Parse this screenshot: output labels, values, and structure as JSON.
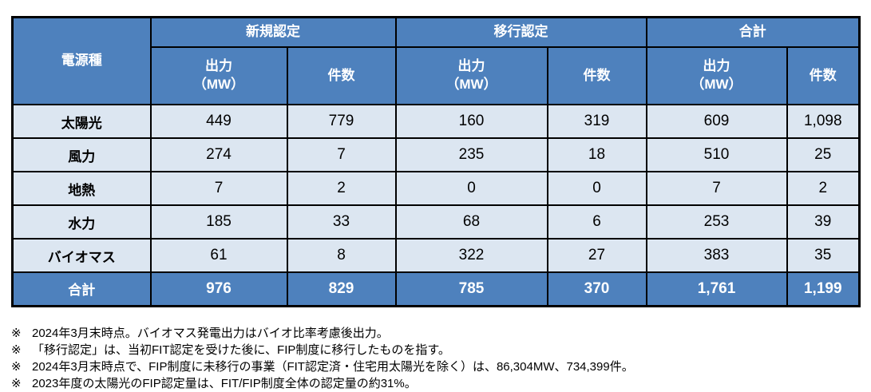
{
  "chart_data": {
    "type": "table",
    "corner_header": "電源種",
    "column_groups": [
      "新規認定",
      "移行認定",
      "合計"
    ],
    "sub_columns": [
      "出力\n（MW）",
      "件数"
    ],
    "rows": [
      {
        "label": "太陽光",
        "values": [
          "449",
          "779",
          "160",
          "319",
          "609",
          "1,098"
        ]
      },
      {
        "label": "風力",
        "values": [
          "274",
          "7",
          "235",
          "18",
          "510",
          "25"
        ]
      },
      {
        "label": "地熱",
        "values": [
          "7",
          "2",
          "0",
          "0",
          "7",
          "2"
        ]
      },
      {
        "label": "水力",
        "values": [
          "185",
          "33",
          "68",
          "6",
          "253",
          "39"
        ]
      },
      {
        "label": "バイオマス",
        "values": [
          "61",
          "8",
          "322",
          "27",
          "383",
          "35"
        ]
      }
    ],
    "total_row": {
      "label": "合計",
      "values": [
        "976",
        "829",
        "785",
        "370",
        "1,761",
        "1,199"
      ]
    },
    "legend_position": "none",
    "grid": "all-borders"
  },
  "footnotes": {
    "marker": "※",
    "items": [
      "2024年3月末時点。バイオマス発電出力はバイオ比率考慮後出力。",
      "「移行認定」は、当初FIT認定を受けた後に、FIP制度に移行したものを指す。",
      "2024年3月末時点で、FIP制度に未移行の事業（FIT認定済・住宅用太陽光を除く）は、86,304MW、734,399件。",
      "2023年度の太陽光のFIP認定量は、FIT/FIP制度全体の認定量の約31%。"
    ]
  },
  "colors": {
    "header_bg": "#4E81BD",
    "data_row_bg": "#DCE6F1",
    "border": "#000000",
    "header_text": "#FFFFFF",
    "body_text": "#000000"
  }
}
